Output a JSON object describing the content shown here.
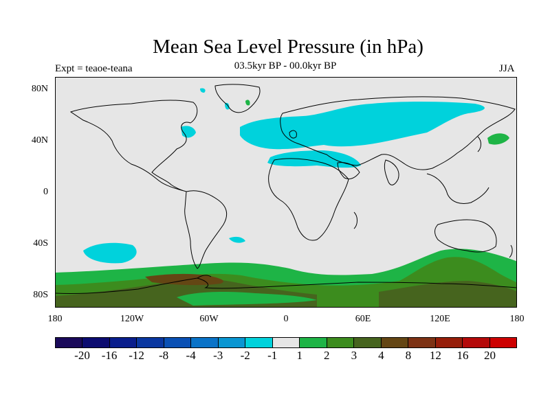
{
  "title": "Mean Sea Level Pressure (in hPa)",
  "subtitle": "03.5kyr BP - 00.0kyr BP",
  "left_label": "Expt = teaoe-teana",
  "right_label": "JJA",
  "map": {
    "lat_ticks": [
      "80N",
      "40N",
      "0",
      "40S",
      "80S"
    ],
    "lon_ticks": [
      "180",
      "120W",
      "60W",
      "0",
      "60E",
      "120E",
      "180"
    ]
  },
  "colorbar": {
    "colors": [
      "#1a0a5a",
      "#0c0c70",
      "#0a1e8c",
      "#0a37a0",
      "#0a50b4",
      "#0a73c8",
      "#0a96d2",
      "#00d2dc",
      "#e6e6e6",
      "#1eb446",
      "#3c8c1e",
      "#46641e",
      "#644614",
      "#7d3214",
      "#961e0a",
      "#b40a0a",
      "#cd0000"
    ],
    "labels": [
      "-20",
      "-16",
      "-12",
      "-8",
      "-4",
      "-3",
      "-2",
      "-1",
      "1",
      "2",
      "3",
      "4",
      "8",
      "12",
      "16",
      "20"
    ]
  },
  "colors": {
    "neg_light": "#00d2dc",
    "pos_2": "#1eb446",
    "pos_3": "#3c8c1e",
    "pos_4": "#46641e",
    "pos_8": "#644614"
  }
}
